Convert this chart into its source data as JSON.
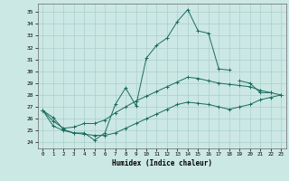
{
  "xlabel": "Humidex (Indice chaleur)",
  "ylabel": "",
  "bg_color": "#cce8e4",
  "grid_color": "#aacfcc",
  "line_color": "#1a6b5e",
  "xlim": [
    -0.5,
    23.5
  ],
  "ylim": [
    23.5,
    35.7
  ],
  "yticks": [
    24,
    25,
    26,
    27,
    28,
    29,
    30,
    31,
    32,
    33,
    34,
    35
  ],
  "xticks": [
    0,
    1,
    2,
    3,
    4,
    5,
    6,
    7,
    8,
    9,
    10,
    11,
    12,
    13,
    14,
    15,
    16,
    17,
    18,
    19,
    20,
    21,
    22,
    23
  ],
  "series": [
    {
      "x": [
        0,
        1,
        2,
        3,
        4,
        5,
        6,
        7,
        8,
        9,
        10,
        11,
        12,
        13,
        14,
        15,
        16,
        17,
        18
      ],
      "y": [
        26.7,
        26.1,
        25.1,
        24.8,
        24.8,
        24.2,
        24.8,
        27.2,
        28.6,
        27.1,
        31.1,
        32.2,
        32.8,
        34.2,
        35.2,
        33.4,
        33.2,
        30.2,
        30.1
      ]
    },
    {
      "x": [
        19,
        20,
        21,
        22
      ],
      "y": [
        29.2,
        29.0,
        28.2,
        28.2
      ]
    },
    {
      "x": [
        0,
        1,
        2,
        3,
        4,
        5,
        6,
        7,
        8,
        9,
        10,
        11,
        12,
        13,
        14,
        15,
        16,
        17,
        18,
        19,
        20,
        21,
        22,
        23
      ],
      "y": [
        26.7,
        25.8,
        25.2,
        25.3,
        25.6,
        25.6,
        25.9,
        26.5,
        27.0,
        27.5,
        27.9,
        28.3,
        28.7,
        29.1,
        29.5,
        29.4,
        29.2,
        29.0,
        28.9,
        28.8,
        28.7,
        28.4,
        28.2,
        28.0
      ]
    },
    {
      "x": [
        0,
        1,
        2,
        3,
        4,
        5,
        6,
        7,
        8,
        9,
        10,
        11,
        12,
        13,
        14,
        15,
        16,
        17,
        18,
        19,
        20,
        21,
        22,
        23
      ],
      "y": [
        26.7,
        25.4,
        25.0,
        24.8,
        24.7,
        24.6,
        24.6,
        24.8,
        25.2,
        25.6,
        26.0,
        26.4,
        26.8,
        27.2,
        27.4,
        27.3,
        27.2,
        27.0,
        26.8,
        27.0,
        27.2,
        27.6,
        27.8,
        28.0
      ]
    }
  ]
}
